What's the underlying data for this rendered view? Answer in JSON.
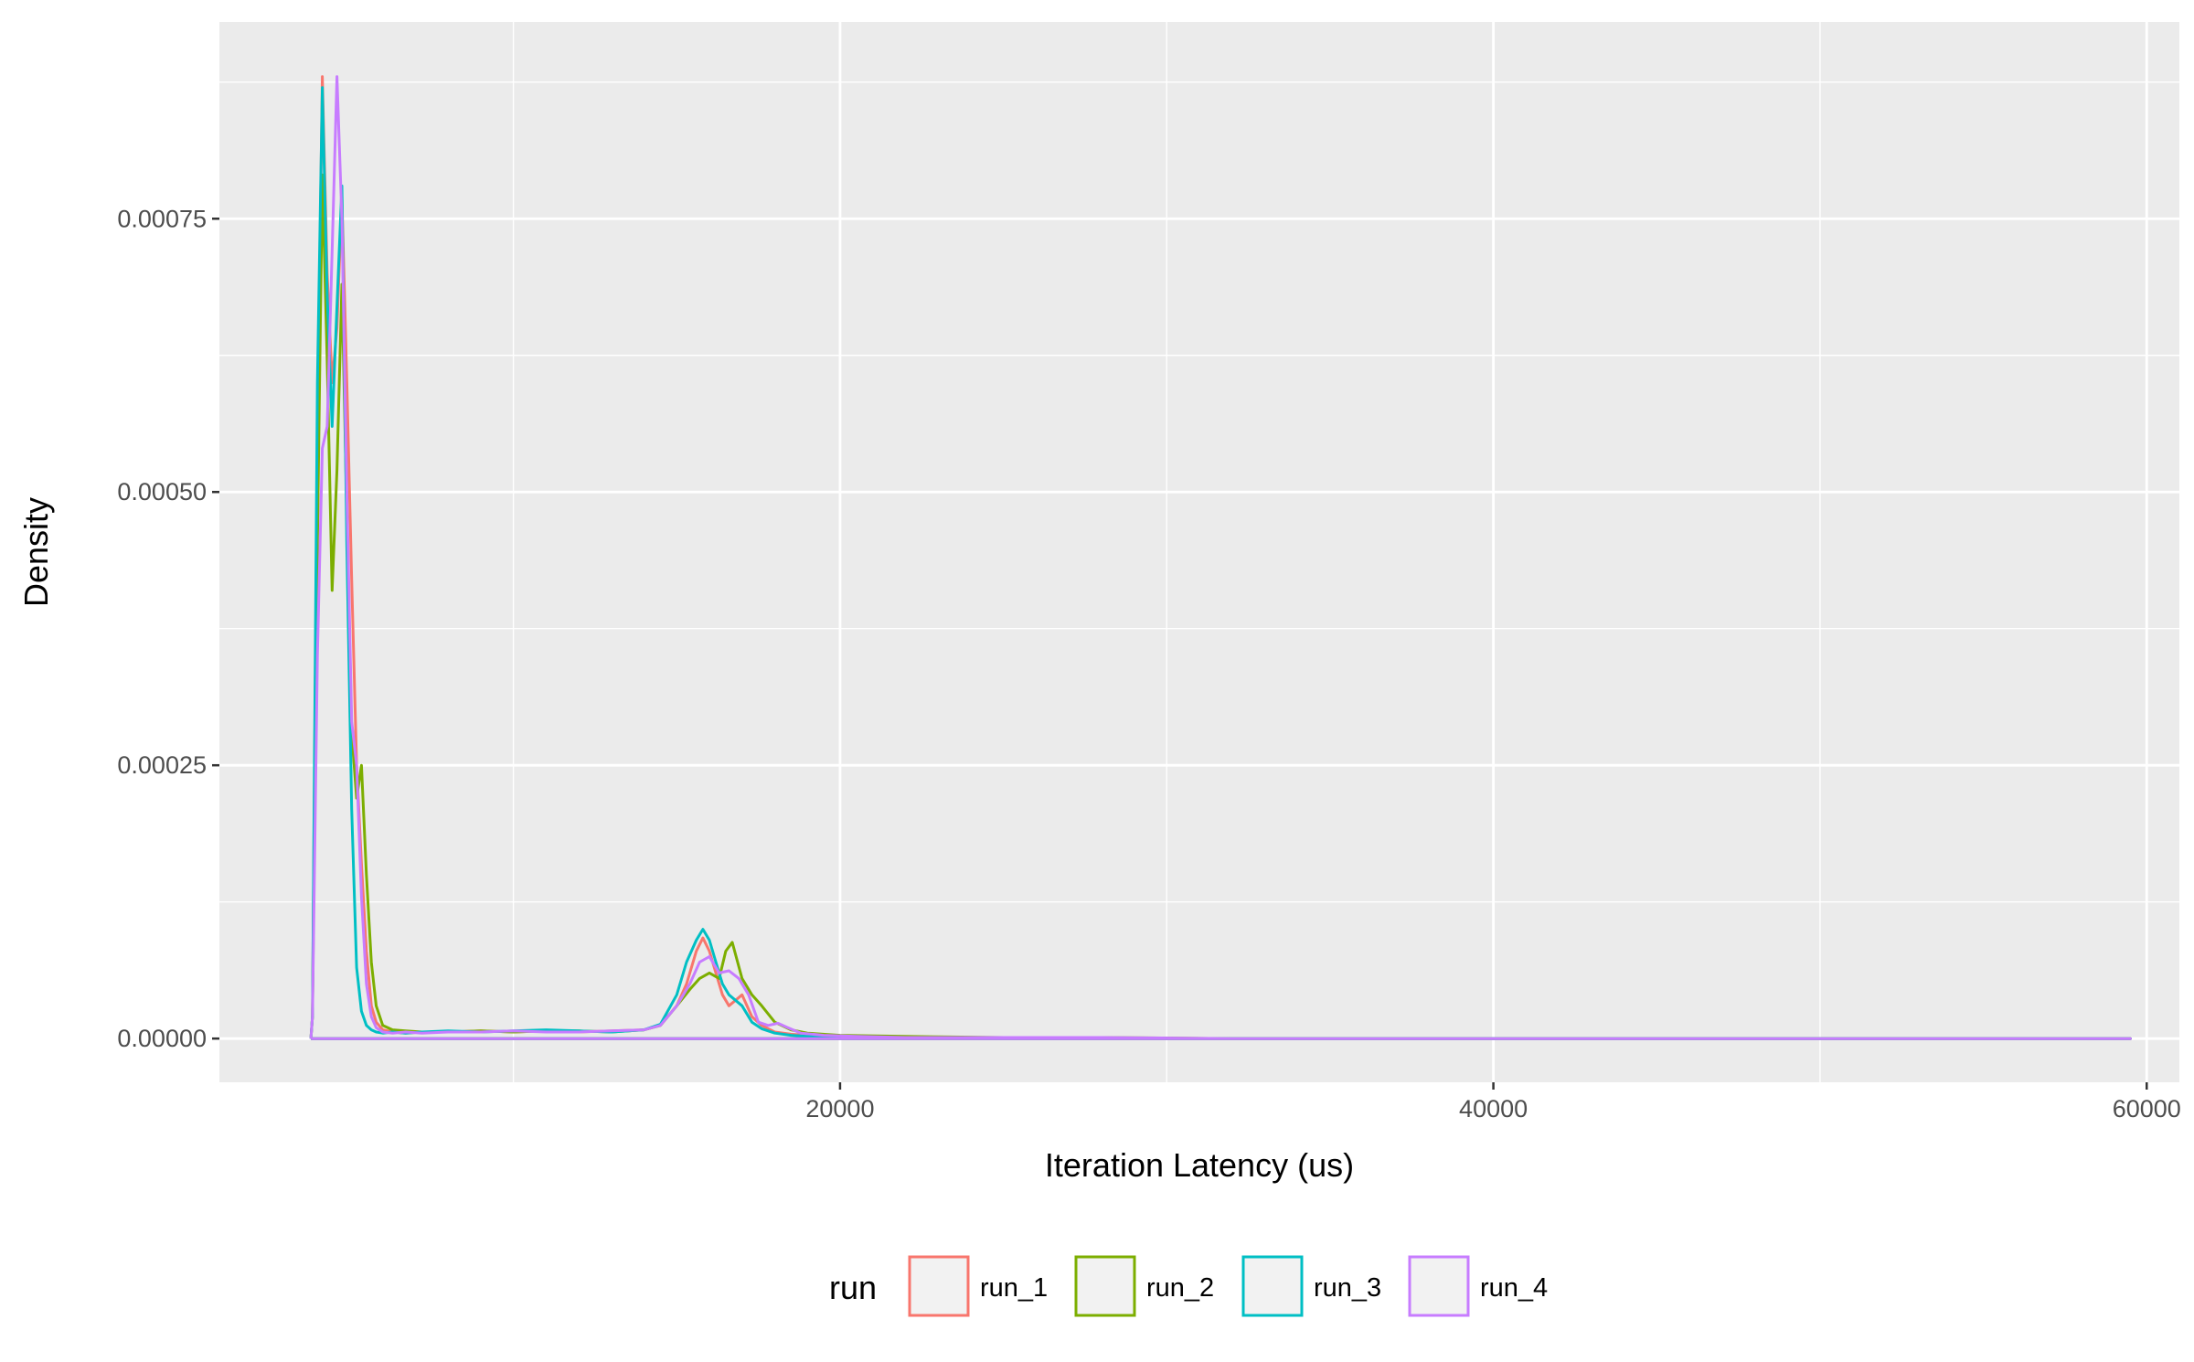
{
  "chart_data": {
    "type": "line",
    "title": "",
    "xlabel": "Iteration Latency (us)",
    "ylabel": "Density",
    "xlim": [
      1000,
      61000
    ],
    "ylim": [
      -4e-05,
      0.00093
    ],
    "xticks": [
      20000,
      40000,
      60000
    ],
    "xtick_labels": [
      "20000",
      "40000",
      "60000"
    ],
    "yticks": [
      0,
      0.00025,
      0.0005,
      0.00075
    ],
    "ytick_labels": [
      "0.00000",
      "0.00025",
      "0.00050",
      "0.00075"
    ],
    "grid": true,
    "legend": {
      "title": "run",
      "position": "bottom"
    },
    "series": [
      {
        "name": "run_1",
        "color": "#F8766D",
        "x": [
          3800,
          3850,
          4000,
          4150,
          4300,
          4450,
          4600,
          4750,
          4900,
          5050,
          5200,
          5350,
          5500,
          5650,
          5800,
          6000,
          6300,
          6700,
          7200,
          8000,
          9000,
          10000,
          11000,
          12000,
          13000,
          14000,
          14500,
          15000,
          15300,
          15600,
          15800,
          16000,
          16200,
          16400,
          16600,
          16800,
          17000,
          17300,
          17600,
          18000,
          18500,
          19000,
          20000,
          22000,
          25000,
          28000,
          32000,
          40000,
          50000,
          59500,
          59500,
          3800
        ],
        "y": [
          0,
          2e-05,
          0.00055,
          0.00088,
          0.0007,
          0.0006,
          0.00065,
          0.00077,
          0.0006,
          0.00042,
          0.00025,
          0.00016,
          8e-05,
          3e-05,
          1.5e-05,
          8e-06,
          6e-06,
          5e-06,
          6e-06,
          6e-06,
          7e-06,
          6e-06,
          7e-06,
          6e-06,
          7e-06,
          8e-06,
          1.2e-05,
          3e-05,
          5e-05,
          8e-05,
          9.2e-05,
          8e-05,
          6e-05,
          4e-05,
          3e-05,
          3.5e-05,
          4e-05,
          2e-05,
          1.2e-05,
          6e-06,
          4e-06,
          3e-06,
          2e-06,
          1e-06,
          1e-06,
          0,
          0,
          0,
          0,
          0,
          0,
          0
        ]
      },
      {
        "name": "run_2",
        "color": "#7CAE00",
        "x": [
          3800,
          3850,
          4000,
          4150,
          4300,
          4450,
          4600,
          4750,
          4900,
          5050,
          5200,
          5350,
          5500,
          5650,
          5800,
          6000,
          6300,
          6700,
          7200,
          8000,
          9000,
          10000,
          11000,
          12000,
          13000,
          14000,
          14500,
          15000,
          15400,
          15700,
          16000,
          16300,
          16500,
          16700,
          17000,
          17300,
          17600,
          18000,
          18500,
          19000,
          20000,
          22000,
          25000,
          28000,
          32000,
          40000,
          50000,
          59500,
          59500,
          3800
        ],
        "y": [
          0,
          2e-05,
          0.00045,
          0.00079,
          0.00062,
          0.00041,
          0.00052,
          0.00069,
          0.00048,
          0.00028,
          0.00022,
          0.00025,
          0.00015,
          7e-05,
          3e-05,
          1.2e-05,
          8e-06,
          7e-06,
          6e-06,
          6e-06,
          7e-06,
          6e-06,
          7e-06,
          7e-06,
          6e-06,
          8e-06,
          1.2e-05,
          3e-05,
          4.5e-05,
          5.5e-05,
          6e-05,
          5.5e-05,
          8e-05,
          8.8e-05,
          5.5e-05,
          4e-05,
          3e-05,
          1.5e-05,
          8e-06,
          5e-06,
          3e-06,
          2e-06,
          1e-06,
          1e-06,
          0,
          0,
          0,
          0,
          0,
          0
        ]
      },
      {
        "name": "run_3",
        "color": "#00BFC4",
        "x": [
          3800,
          3850,
          4000,
          4150,
          4300,
          4450,
          4600,
          4750,
          4900,
          5050,
          5200,
          5350,
          5500,
          5650,
          5800,
          6000,
          6300,
          6700,
          7200,
          8000,
          9000,
          10000,
          11000,
          12000,
          13000,
          14000,
          14500,
          15000,
          15300,
          15600,
          15800,
          16000,
          16200,
          16400,
          16600,
          16800,
          17000,
          17300,
          17600,
          18000,
          18500,
          19000,
          20000,
          22000,
          25000,
          28000,
          32000,
          40000,
          50000,
          59500,
          59500,
          3800
        ],
        "y": [
          0,
          2e-05,
          0.0006,
          0.00087,
          0.00068,
          0.00056,
          0.00067,
          0.00078,
          0.00045,
          0.00021,
          6.5e-05,
          2.5e-05,
          1.2e-05,
          8e-06,
          6e-06,
          5e-06,
          6e-06,
          5e-06,
          6e-06,
          7e-06,
          6e-06,
          7e-06,
          8e-06,
          7e-06,
          6e-06,
          8e-06,
          1.3e-05,
          4e-05,
          7e-05,
          9e-05,
          0.0001,
          9e-05,
          7e-05,
          5e-05,
          4e-05,
          3.5e-05,
          3e-05,
          1.5e-05,
          9e-06,
          5e-06,
          3e-06,
          2e-06,
          1e-06,
          1e-06,
          0,
          0,
          0,
          0,
          0,
          0,
          0,
          0
        ]
      },
      {
        "name": "run_4",
        "color": "#C77CFF",
        "x": [
          3800,
          3850,
          4000,
          4150,
          4300,
          4450,
          4600,
          4750,
          4900,
          5050,
          5200,
          5350,
          5500,
          5650,
          5800,
          6000,
          6300,
          6700,
          7200,
          8000,
          9000,
          10000,
          11000,
          12000,
          13000,
          14000,
          14500,
          15000,
          15400,
          15700,
          16000,
          16300,
          16600,
          16900,
          17200,
          17500,
          17800,
          18100,
          18400,
          18800,
          19500,
          20500,
          22000,
          25000,
          28000,
          32000,
          40000,
          50000,
          59500,
          59500,
          3800
        ],
        "y": [
          0,
          2e-05,
          0.00035,
          0.00054,
          0.00056,
          0.00072,
          0.00088,
          0.00075,
          0.0005,
          0.00029,
          0.00025,
          0.00013,
          5e-05,
          2e-05,
          1e-05,
          6e-06,
          5e-06,
          6e-06,
          5e-06,
          6e-06,
          6e-06,
          7e-06,
          6e-06,
          6e-06,
          7e-06,
          8e-06,
          1.2e-05,
          3e-05,
          5e-05,
          7e-05,
          7.5e-05,
          6e-05,
          6.2e-05,
          5.5e-05,
          4e-05,
          1.5e-05,
          1.2e-05,
          1.4e-05,
          1e-05,
          5e-06,
          3e-06,
          2e-06,
          1e-06,
          1e-06,
          1e-06,
          0,
          0,
          0,
          0,
          0,
          0
        ]
      }
    ]
  }
}
